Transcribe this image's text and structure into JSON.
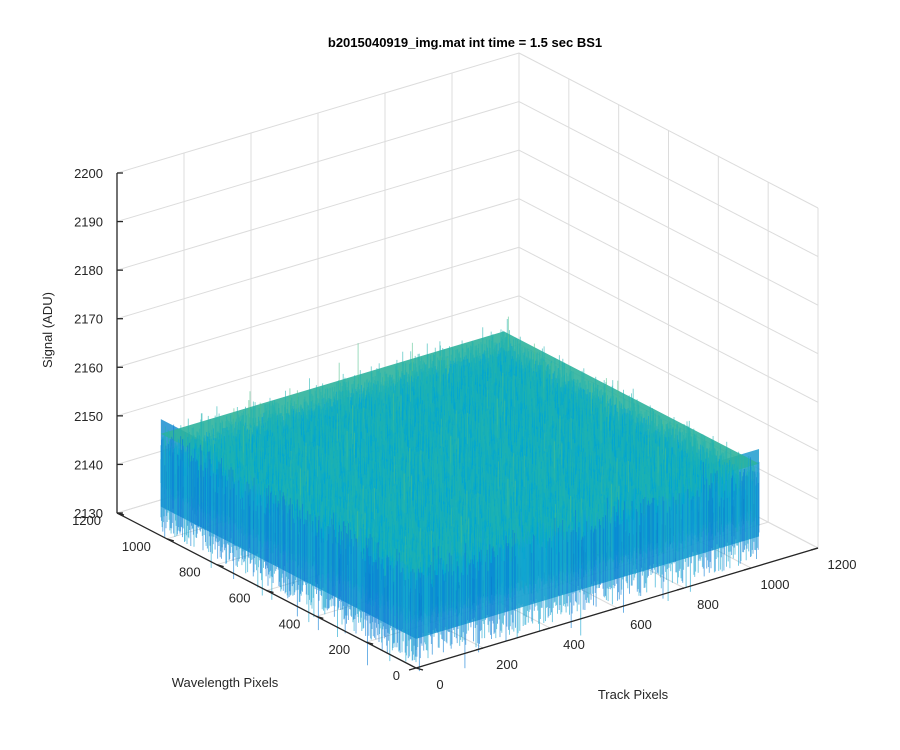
{
  "chart_data": {
    "type": "surface",
    "title": "b2015040919_img.mat int time = 1.5 sec   BS1",
    "xlabel": "Track Pixels",
    "ylabel": "Wavelength Pixels",
    "zlabel": "Signal (ADU)",
    "xlim": [
      0,
      1200
    ],
    "ylim": [
      0,
      1200
    ],
    "zlim": [
      2130,
      2200
    ],
    "x_ticks": [
      "0",
      "200",
      "400",
      "600",
      "800",
      "1000",
      "1200"
    ],
    "y_ticks": [
      "0",
      "200",
      "400",
      "600",
      "800",
      "1000",
      "1200"
    ],
    "z_ticks": [
      "2130",
      "2140",
      "2150",
      "2160",
      "2170",
      "2180",
      "2190",
      "2200"
    ],
    "surface": {
      "x_range": [
        0,
        1024
      ],
      "y_range": [
        0,
        1024
      ],
      "z_mean": 2145,
      "z_spread": [
        2135,
        2158
      ],
      "z_peaks_max": 2180,
      "z_dips_min": 2130
    },
    "colormap": [
      "#0072BD",
      "#00A6D6",
      "#1FB3B0",
      "#4CC08A",
      "#8DC94F",
      "#D9C43A"
    ],
    "grid": true
  }
}
